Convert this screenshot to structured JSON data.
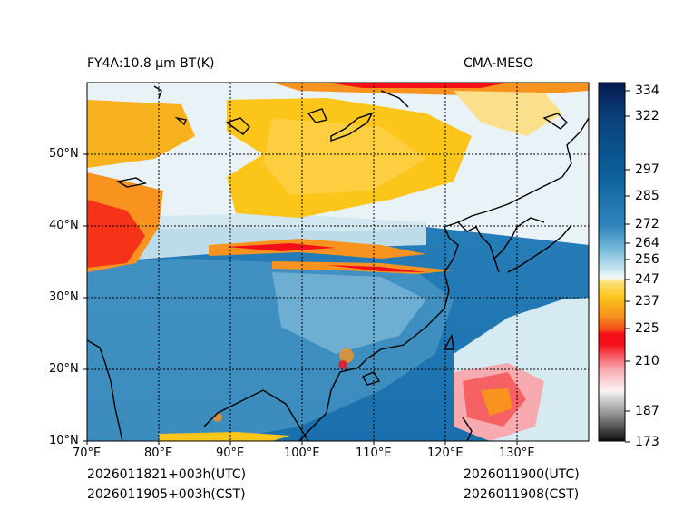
{
  "header": {
    "variable": "FY4A:10.8 μm BT(K)",
    "source": "CMA-MESO"
  },
  "footer": {
    "init_utc": "2026011821+003h(UTC)",
    "init_cst": "2026011905+003h(CST)",
    "valid_utc": "2026011900(UTC)",
    "valid_cst": "2026011908(CST)"
  },
  "map": {
    "lon_range": [
      70,
      140
    ],
    "lat_range": [
      10,
      60
    ],
    "lat_labels": [
      "10°N",
      "20°N",
      "30°N",
      "40°N",
      "50°N"
    ],
    "lon_labels": [
      "70°E",
      "80°E",
      "90°E",
      "100°E",
      "110°E",
      "120°E",
      "130°E"
    ]
  },
  "colorbar": {
    "range": [
      173,
      338
    ],
    "ticks": [
      334,
      322,
      297,
      285,
      272,
      264,
      256,
      247,
      237,
      225,
      210,
      187,
      173
    ],
    "colors": {
      "top": "#061a4e",
      "high": "#0b5f99",
      "mid": "#4e9fc9",
      "light": "#bfe0ee",
      "white": "#f4f8fa",
      "yellow": "#fcc51a",
      "orange": "#f7931e",
      "red": "#f50f19",
      "pink": "#f7aab0",
      "black": "#111111"
    }
  }
}
